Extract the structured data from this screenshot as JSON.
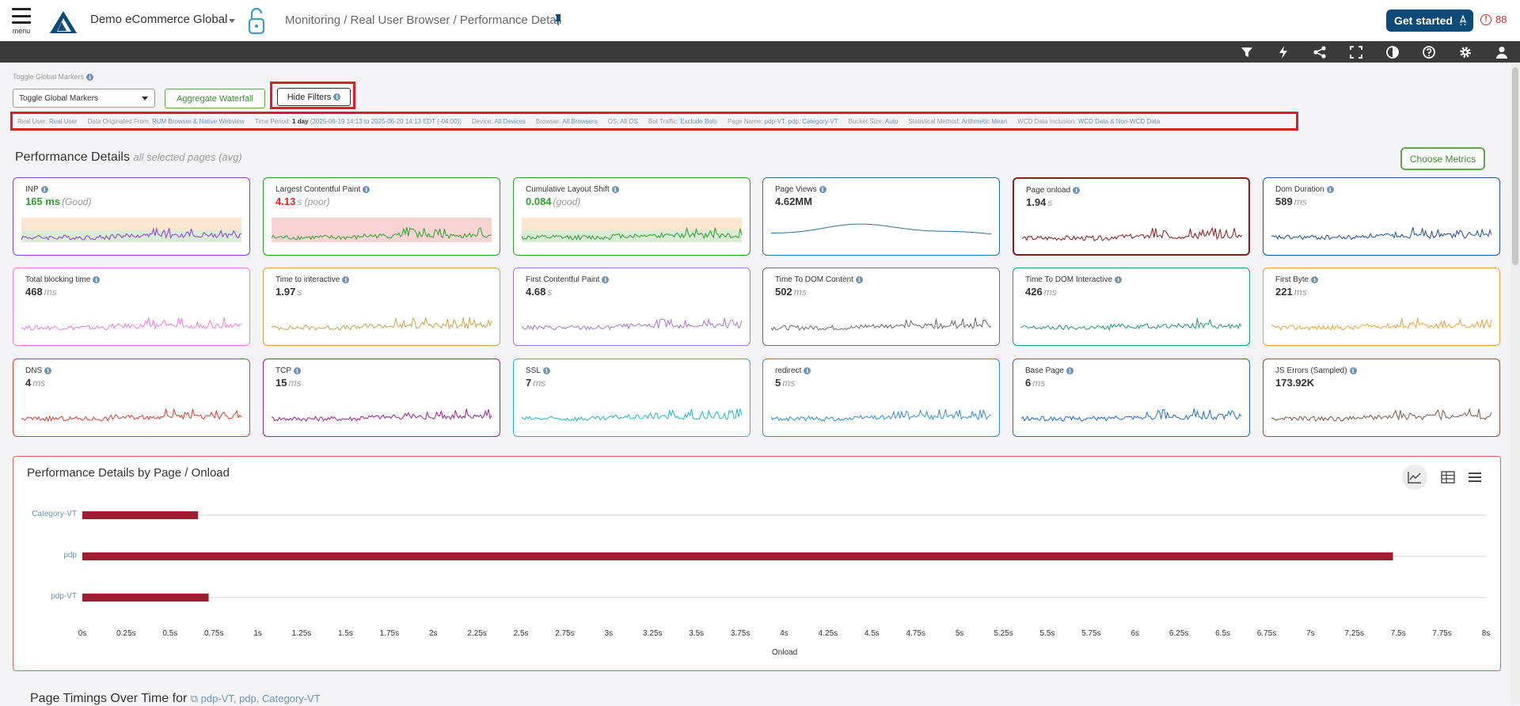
{
  "header": {
    "menu_label": "menu",
    "org_name": "Demo eCommerce Global",
    "breadcrumb": "Monitoring / Real User Browser / Performance Detail",
    "get_started_label": "Get started",
    "alert_count": "88",
    "alert_symbol": "!"
  },
  "toolbar": {
    "icons": [
      "filter-icon",
      "lightning-icon",
      "share-icon",
      "fullscreen-icon",
      "contrast-icon",
      "help-icon",
      "gear-icon",
      "user-icon"
    ]
  },
  "controls": {
    "global_markers_label": "Toggle Global Markers",
    "global_markers_value": "Toggle Global Markers",
    "aggregate_waterfall_label": "Aggregate Waterfall",
    "hide_filters_label": "Hide Filters"
  },
  "filters": [
    {
      "key": "Real User:",
      "value": "Real User"
    },
    {
      "key": "Data Originated From:",
      "value": "RUM Browser & Native Webview"
    },
    {
      "key": "Time Period:",
      "bold": "1 day",
      "value": "(2025-06-19 14:13 to 2025-06-20 14:13 EDT (-04:00))"
    },
    {
      "key": "Device:",
      "value": "All Devices"
    },
    {
      "key": "Browser:",
      "value": "All Browsers"
    },
    {
      "key": "OS:",
      "value": "All OS"
    },
    {
      "key": "Bot Traffic:",
      "value": "Exclude Bots"
    },
    {
      "key": "Page Name:",
      "value": "pdp-VT, pdp, Category-VT"
    },
    {
      "key": "Bucket Size:",
      "value": "Auto"
    },
    {
      "key": "Statistical Method:",
      "value": "Arithmetic Mean"
    },
    {
      "key": "WCD Data Inclusion:",
      "value": "WCD Data & Non-WCD Data"
    }
  ],
  "performance": {
    "title": "Performance Details",
    "subtitle": "all selected pages (avg)",
    "choose_metrics_label": "Choose Metrics"
  },
  "metrics": [
    {
      "title": "INP",
      "value": "165 ms",
      "unit": "(Good)",
      "color": "#8a3fd1",
      "value_color": "#2e9e2e",
      "band": "good",
      "seed": 3
    },
    {
      "title": "Largest Contentful Paint",
      "value": "4.13",
      "unit": "s (poor)",
      "color": "#2e9e2e",
      "value_color": "#e02020",
      "band": "poor",
      "seed": 7
    },
    {
      "title": "Cumulative Layout Shift",
      "value": "0.084",
      "unit": "(good)",
      "color": "#2e9e2e",
      "value_color": "#2e9e2e",
      "band": "good",
      "seed": 11
    },
    {
      "title": "Page Views",
      "value": "4.62MM",
      "unit": "",
      "color": "#2f6f95",
      "value_color": "#333333",
      "band": "",
      "seed": 0,
      "smooth": true
    },
    {
      "title": "Page onload",
      "value": "1.94",
      "unit": "s",
      "color": "#8b1a1a",
      "value_color": "#333333",
      "band": "",
      "seed": 13
    },
    {
      "title": "Dom Duration",
      "value": "589",
      "unit": "ms",
      "color": "#1e4fa0",
      "value_color": "#333333",
      "band": "",
      "seed": 17
    },
    {
      "title": "Total blocking time",
      "value": "468",
      "unit": "ms",
      "color": "#f07be0",
      "value_color": "#333333",
      "band": "",
      "seed": 19
    },
    {
      "title": "Time to interactive",
      "value": "1.97",
      "unit": "s",
      "color": "#c9a44a",
      "value_color": "#333333",
      "band": "",
      "seed": 23
    },
    {
      "title": "First Contentful Paint",
      "value": "4.68",
      "unit": "s",
      "color": "#a678d6",
      "value_color": "#333333",
      "band": "",
      "seed": 29
    },
    {
      "title": "Time To DOM Content",
      "value": "502",
      "unit": "ms",
      "color": "#6b6b6b",
      "value_color": "#333333",
      "band": "",
      "seed": 31
    },
    {
      "title": "Time To DOM Interactive",
      "value": "426",
      "unit": "ms",
      "color": "#1f9a78",
      "value_color": "#333333",
      "band": "",
      "seed": 37
    },
    {
      "title": "First Byte",
      "value": "221",
      "unit": "ms",
      "color": "#f0a030",
      "value_color": "#333333",
      "band": "",
      "seed": 41
    },
    {
      "title": "DNS",
      "value": "4",
      "unit": "ms",
      "color": "#e23b2b",
      "value_color": "#333333",
      "band": "",
      "seed": 43
    },
    {
      "title": "TCP",
      "value": "15",
      "unit": "ms",
      "color": "#a0209a",
      "value_color": "#333333",
      "band": "",
      "seed": 47
    },
    {
      "title": "SSL",
      "value": "7",
      "unit": "ms",
      "color": "#20b8c8",
      "value_color": "#333333",
      "band": "",
      "seed": 53
    },
    {
      "title": "redirect",
      "value": "5",
      "unit": "ms",
      "color": "#2e8ee0",
      "value_color": "#333333",
      "band": "",
      "seed": 59
    },
    {
      "title": "Base Page",
      "value": "6",
      "unit": "ms",
      "color": "#1e6ae0",
      "value_color": "#333333",
      "band": "",
      "seed": 61
    },
    {
      "title": "JS Errors (Sampled)",
      "value": "173.92K",
      "unit": "",
      "color": "#7a5a48",
      "value_color": "#333333",
      "band": "",
      "seed": 67
    }
  ],
  "chart_panel": {
    "title": "Performance Details by Page / Onload",
    "view_icons": [
      "line-chart-icon",
      "table-icon",
      "list-icon"
    ]
  },
  "chart_data": {
    "type": "bar",
    "orientation": "horizontal",
    "title": "Performance Details by Page / Onload",
    "categories": [
      "Category-VT",
      "pdp",
      "pdp-VT"
    ],
    "values": [
      0.66,
      7.47,
      0.72
    ],
    "xlabel": "Onload",
    "xlim": [
      0,
      8
    ],
    "xticks": [
      "0s",
      "0.25s",
      "0.5s",
      "0.75s",
      "1s",
      "1.25s",
      "1.5s",
      "1.75s",
      "2s",
      "2.25s",
      "2.5s",
      "2.75s",
      "3s",
      "3.25s",
      "3.5s",
      "3.75s",
      "4s",
      "4.25s",
      "4.5s",
      "4.75s",
      "5s",
      "5.25s",
      "5.5s",
      "5.75s",
      "6s",
      "6.25s",
      "6.5s",
      "6.75s",
      "7s",
      "7.25s",
      "7.5s",
      "7.75s",
      "8s"
    ],
    "bar_color": "#9b1f2e",
    "grid": true
  },
  "page_timings": {
    "title": "Page Timings Over Time for",
    "pages": "pdp-VT, pdp, Category-VT"
  }
}
